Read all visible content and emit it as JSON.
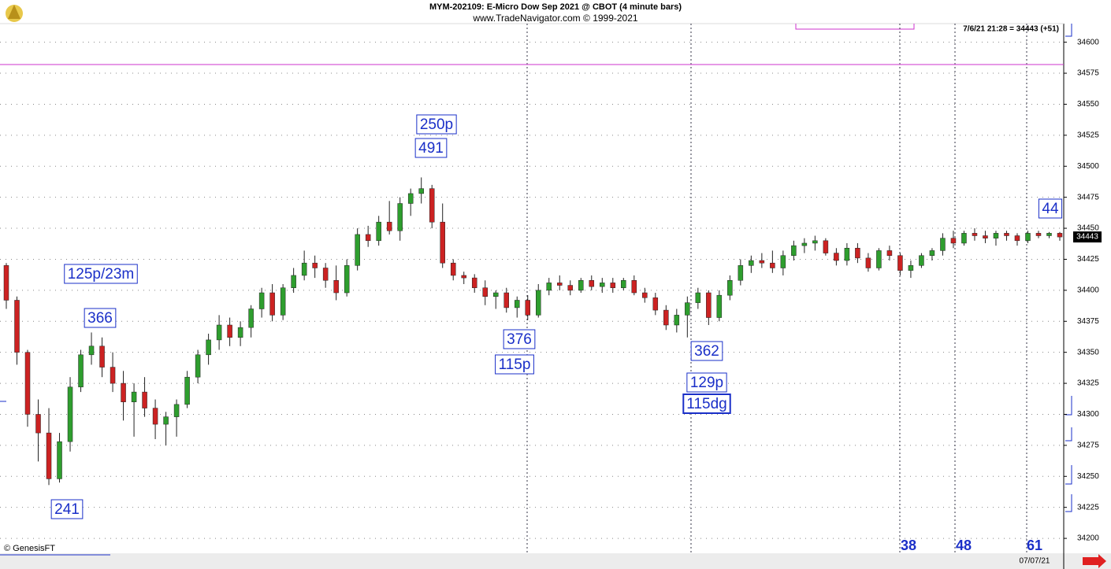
{
  "chart_data": {
    "type": "candlestick",
    "title": "MYM-202109:  E-Micro Dow Sep 2021 @ CBOT  (4 minute bars)",
    "subtitle": "www.TradeNavigator.com © 1999-2021",
    "info": "7/6/21 21:28 = 34443 (+51)",
    "last_price": 34443,
    "credit": "© GenesisFT",
    "x_label": "07/07/21",
    "ylim": [
      34188,
      34615
    ],
    "yticks": [
      34200,
      34225,
      34250,
      34275,
      34300,
      34325,
      34350,
      34375,
      34400,
      34425,
      34450,
      34475,
      34500,
      34525,
      34550,
      34575,
      34600
    ],
    "grid": true,
    "up_color": "#2e9e2e",
    "down_color": "#cc2222",
    "reference_line": 34582,
    "reference_color": "#cc33cc",
    "annotations": [
      "250p",
      "491",
      "125p/23m",
      "366",
      "241",
      "376",
      "115p",
      "362",
      "129p",
      "115dg",
      "44"
    ],
    "bar_counts": [
      "38",
      "48",
      "61"
    ],
    "candles": [
      [
        34420,
        34422,
        34385,
        34392
      ],
      [
        34392,
        34395,
        34340,
        34350
      ],
      [
        34350,
        34352,
        34290,
        34300
      ],
      [
        34300,
        34312,
        34262,
        34285
      ],
      [
        34285,
        34305,
        34243,
        34248
      ],
      [
        34248,
        34285,
        34245,
        34278
      ],
      [
        34278,
        34330,
        34270,
        34322
      ],
      [
        34322,
        34352,
        34318,
        34348
      ],
      [
        34348,
        34366,
        34340,
        34355
      ],
      [
        34355,
        34362,
        34330,
        34338
      ],
      [
        34338,
        34350,
        34318,
        34325
      ],
      [
        34325,
        34335,
        34295,
        34310
      ],
      [
        34310,
        34325,
        34282,
        34318
      ],
      [
        34318,
        34330,
        34298,
        34305
      ],
      [
        34305,
        34312,
        34280,
        34292
      ],
      [
        34292,
        34302,
        34275,
        34298
      ],
      [
        34298,
        34312,
        34282,
        34308
      ],
      [
        34308,
        34335,
        34305,
        34330
      ],
      [
        34330,
        34352,
        34325,
        34348
      ],
      [
        34348,
        34365,
        34340,
        34360
      ],
      [
        34360,
        34380,
        34352,
        34372
      ],
      [
        34372,
        34378,
        34355,
        34362
      ],
      [
        34362,
        34375,
        34355,
        34370
      ],
      [
        34370,
        34388,
        34362,
        34385
      ],
      [
        34385,
        34402,
        34378,
        34398
      ],
      [
        34398,
        34405,
        34375,
        34380
      ],
      [
        34380,
        34405,
        34376,
        34402
      ],
      [
        34402,
        34418,
        34398,
        34412
      ],
      [
        34412,
        34432,
        34408,
        34422
      ],
      [
        34422,
        34428,
        34410,
        34418
      ],
      [
        34418,
        34422,
        34402,
        34408
      ],
      [
        34408,
        34420,
        34392,
        34398
      ],
      [
        34398,
        34425,
        34395,
        34420
      ],
      [
        34420,
        34450,
        34416,
        34445
      ],
      [
        34445,
        34452,
        34435,
        34440
      ],
      [
        34440,
        34460,
        34436,
        34455
      ],
      [
        34455,
        34472,
        34445,
        34448
      ],
      [
        34448,
        34475,
        34440,
        34470
      ],
      [
        34470,
        34482,
        34460,
        34478
      ],
      [
        34478,
        34491,
        34470,
        34482
      ],
      [
        34482,
        34485,
        34450,
        34455
      ],
      [
        34455,
        34470,
        34418,
        34422
      ],
      [
        34422,
        34425,
        34408,
        34412
      ],
      [
        34412,
        34415,
        34405,
        34410
      ],
      [
        34410,
        34413,
        34398,
        34402
      ],
      [
        34402,
        34408,
        34388,
        34395
      ],
      [
        34395,
        34400,
        34385,
        34398
      ],
      [
        34398,
        34402,
        34382,
        34386
      ],
      [
        34386,
        34395,
        34378,
        34392
      ],
      [
        34392,
        34396,
        34376,
        34380
      ],
      [
        34380,
        34405,
        34378,
        34400
      ],
      [
        34400,
        34410,
        34396,
        34406
      ],
      [
        34406,
        34412,
        34400,
        34404
      ],
      [
        34404,
        34408,
        34396,
        34400
      ],
      [
        34400,
        34410,
        34398,
        34408
      ],
      [
        34408,
        34412,
        34400,
        34403
      ],
      [
        34403,
        34410,
        34398,
        34406
      ],
      [
        34406,
        34410,
        34398,
        34402
      ],
      [
        34402,
        34410,
        34400,
        34408
      ],
      [
        34408,
        34412,
        34396,
        34398
      ],
      [
        34398,
        34402,
        34390,
        34394
      ],
      [
        34394,
        34398,
        34380,
        34384
      ],
      [
        34384,
        34388,
        34368,
        34372
      ],
      [
        34372,
        34385,
        34366,
        34380
      ],
      [
        34380,
        34395,
        34362,
        34390
      ],
      [
        34390,
        34402,
        34385,
        34398
      ],
      [
        34398,
        34400,
        34372,
        34378
      ],
      [
        34378,
        34400,
        34375,
        34396
      ],
      [
        34396,
        34412,
        34392,
        34408
      ],
      [
        34408,
        34425,
        34404,
        34420
      ],
      [
        34420,
        34428,
        34414,
        34424
      ],
      [
        34424,
        34430,
        34418,
        34422
      ],
      [
        34422,
        34432,
        34414,
        34418
      ],
      [
        34418,
        34432,
        34412,
        34428
      ],
      [
        34428,
        34440,
        34424,
        34436
      ],
      [
        34436,
        34442,
        34430,
        34438
      ],
      [
        34438,
        34444,
        34432,
        34440
      ],
      [
        34440,
        34442,
        34428,
        34430
      ],
      [
        34430,
        34434,
        34420,
        34424
      ],
      [
        34424,
        34438,
        34420,
        34434
      ],
      [
        34434,
        34438,
        34422,
        34426
      ],
      [
        34426,
        34430,
        34415,
        34418
      ],
      [
        34418,
        34434,
        34416,
        34432
      ],
      [
        34432,
        34436,
        34424,
        34428
      ],
      [
        34428,
        34430,
        34412,
        34416
      ],
      [
        34416,
        34424,
        34410,
        34420
      ],
      [
        34420,
        34430,
        34418,
        34428
      ],
      [
        34428,
        34434,
        34424,
        34432
      ],
      [
        34432,
        34446,
        34428,
        34442
      ],
      [
        34442,
        34448,
        34434,
        34438
      ],
      [
        34438,
        34448,
        34436,
        34446
      ],
      [
        34446,
        34450,
        34440,
        34444
      ],
      [
        34444,
        34448,
        34438,
        34442
      ],
      [
        34442,
        34448,
        34436,
        34446
      ],
      [
        34446,
        34448,
        34440,
        34444
      ],
      [
        34444,
        34446,
        34436,
        34440
      ],
      [
        34440,
        34448,
        34438,
        34446
      ],
      [
        34446,
        34448,
        34442,
        34444
      ],
      [
        34444,
        34447,
        34442,
        34446
      ],
      [
        34446,
        34447,
        34440,
        34443
      ]
    ]
  }
}
